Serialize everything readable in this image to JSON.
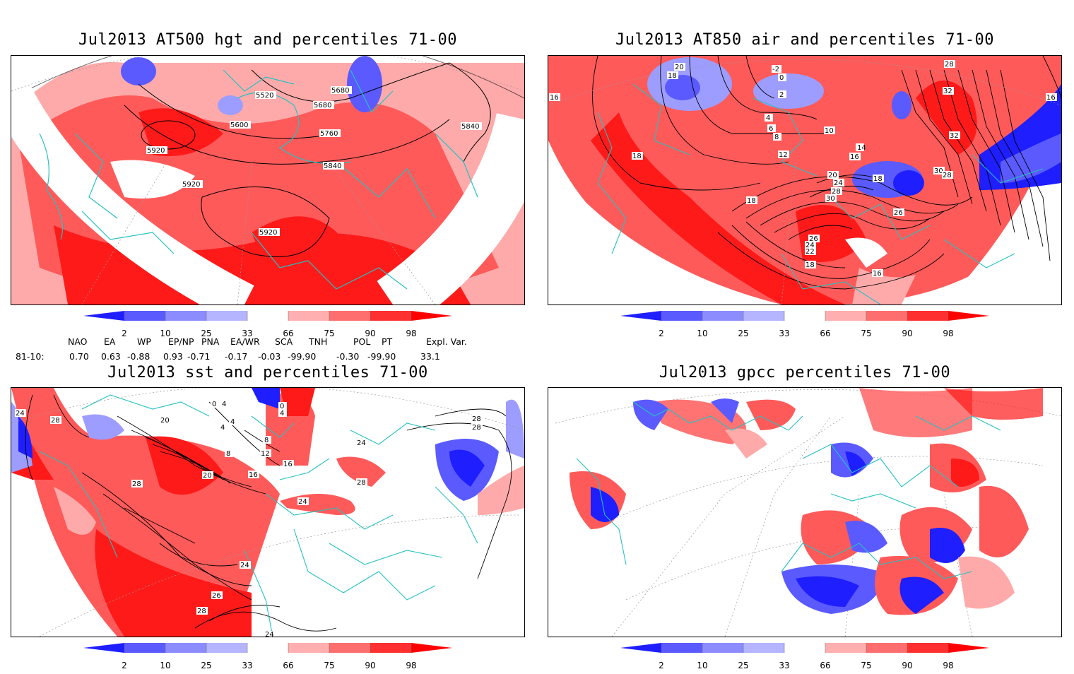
{
  "panels": [
    {
      "title": "Jul2013 AT500 hgt and percentiles 71-00",
      "contour_labels": [
        "5520",
        "5680",
        "5680",
        "5600",
        "5760",
        "5840",
        "5840",
        "5920",
        "5920",
        "5920"
      ]
    },
    {
      "title": "Jul2013 AT850 air and percentiles 71-00",
      "contour_labels": [
        "20",
        "18",
        "-2",
        "0",
        "2",
        "4",
        "6",
        "8",
        "10",
        "12",
        "14",
        "16",
        "16",
        "16",
        "18",
        "18",
        "18",
        "20",
        "22",
        "24",
        "24",
        "26",
        "26",
        "28",
        "28",
        "30",
        "30",
        "32",
        "32",
        "26",
        "28",
        "18",
        "16"
      ]
    },
    {
      "title": "Jul2013 sst and percentiles 71-00",
      "contour_labels": [
        "24",
        "28",
        "20",
        "0",
        "4",
        "4",
        "0",
        "4",
        "8",
        "8",
        "12",
        "16",
        "16",
        "20",
        "24",
        "24",
        "28",
        "28",
        "28",
        "24",
        "28",
        "26",
        "28",
        "24",
        "4"
      ]
    },
    {
      "title": "Jul2013 gpcc percentiles 71-00",
      "contour_labels": []
    }
  ],
  "colorbar": {
    "ticks": [
      "2",
      "10",
      "25",
      "33",
      "66",
      "75",
      "90",
      "98"
    ],
    "colors": [
      "#1e1eff",
      "#5a5aff",
      "#8c8cff",
      "#b4b4ff",
      "#ffffff",
      "#ffafaf",
      "#ff6e6e",
      "#ff3030",
      "#ff0000"
    ]
  },
  "teleconnections": {
    "headers": [
      "NAO",
      "EA",
      "WP",
      "EP/NP",
      "PNA",
      "EA/WR",
      "SCA",
      "TNH",
      "POL",
      "PT",
      "Expl. Var."
    ],
    "row_label": "81-10:",
    "values": [
      "0.70",
      "0.63",
      "-0.88",
      "0.93",
      "-0.71",
      "-0.17",
      "-0.03",
      "-99.90",
      "-0.30",
      "-99.90",
      "33.1"
    ]
  },
  "map_colors": {
    "strong_red": "#ff1a1a",
    "red": "#ff5a5a",
    "light_red": "#ffaaaa",
    "blue": "#3a3aff",
    "light_blue": "#9d9dff",
    "coast": "#27c0c0"
  }
}
